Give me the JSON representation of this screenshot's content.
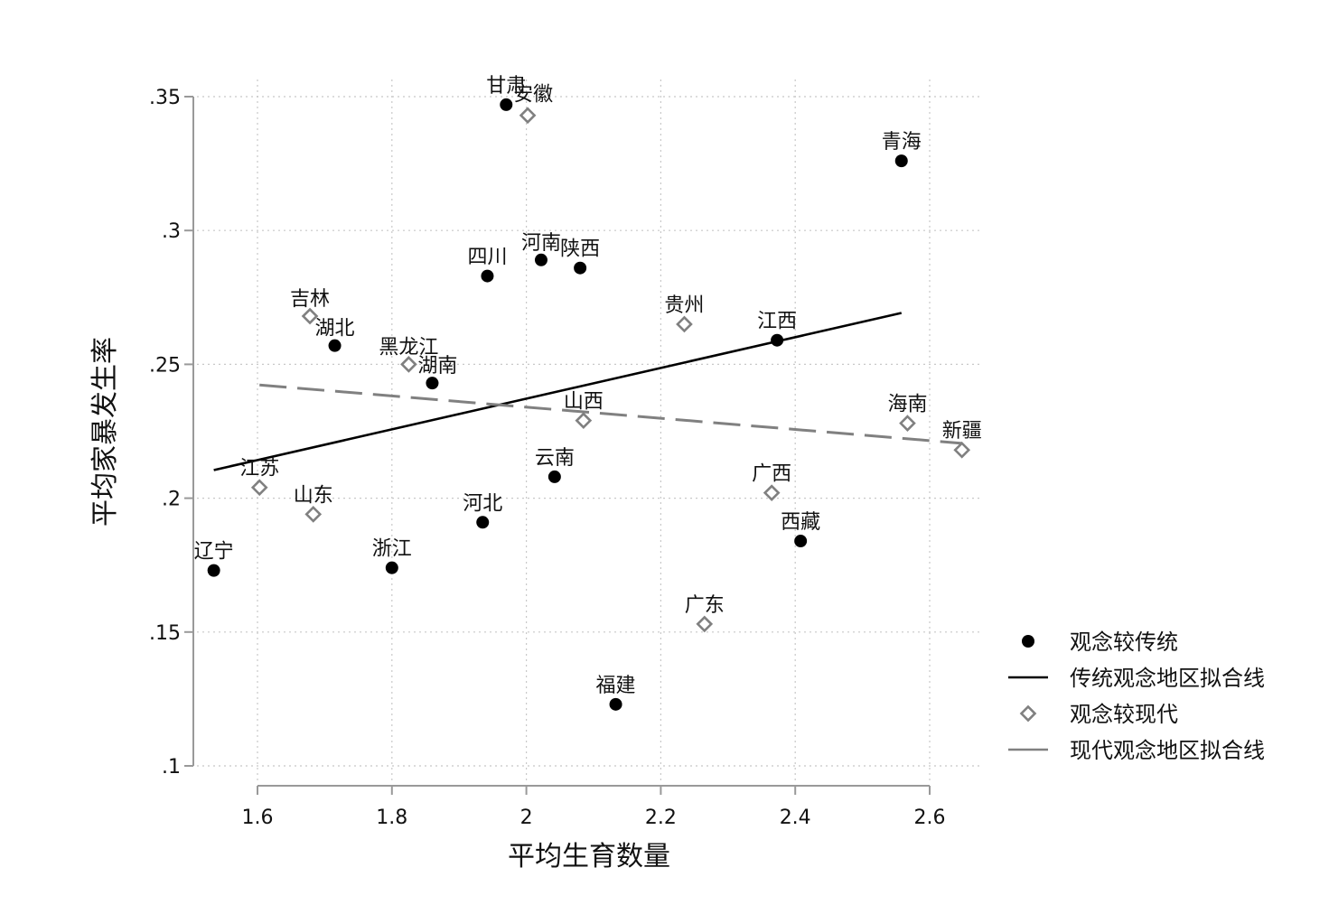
{
  "chart_data": {
    "type": "scatter",
    "title": "",
    "xlabel": "平均生育数量",
    "ylabel": "平均家暴发生率",
    "xlim": [
      1.51,
      2.67
    ],
    "ylim": [
      0.095,
      0.365
    ],
    "xticks": [
      1.6,
      1.8,
      2.0,
      2.2,
      2.4,
      2.6
    ],
    "xtick_labels": [
      "1.6",
      "1.8",
      "2",
      "2.2",
      "2.4",
      "2.6"
    ],
    "yticks": [
      0.1,
      0.15,
      0.2,
      0.25,
      0.3,
      0.35
    ],
    "ytick_labels": [
      ".1",
      ".15",
      ".2",
      ".25",
      ".3",
      ".35"
    ],
    "grid": true,
    "legend_position": "right",
    "series": [
      {
        "name": "观念较传统",
        "marker": "filled-circle",
        "color": "#000000",
        "points": [
          {
            "label": "辽宁",
            "x": 1.535,
            "y": 0.173
          },
          {
            "label": "湖北",
            "x": 1.715,
            "y": 0.257
          },
          {
            "label": "浙江",
            "x": 1.8,
            "y": 0.174
          },
          {
            "label": "湖南",
            "x": 1.86,
            "y": 0.243
          },
          {
            "label": "河北",
            "x": 1.935,
            "y": 0.191
          },
          {
            "label": "四川",
            "x": 1.942,
            "y": 0.283
          },
          {
            "label": "甘肃",
            "x": 1.97,
            "y": 0.347
          },
          {
            "label": "河南",
            "x": 2.022,
            "y": 0.289
          },
          {
            "label": "云南",
            "x": 2.042,
            "y": 0.208
          },
          {
            "label": "陕西",
            "x": 2.08,
            "y": 0.286
          },
          {
            "label": "福建",
            "x": 2.133,
            "y": 0.123
          },
          {
            "label": "江西",
            "x": 2.373,
            "y": 0.259
          },
          {
            "label": "西藏",
            "x": 2.408,
            "y": 0.184
          },
          {
            "label": "青海",
            "x": 2.558,
            "y": 0.326
          }
        ]
      },
      {
        "name": "传统观念地区拟合线",
        "type": "line",
        "color": "#000000",
        "dash": "solid",
        "x": [
          1.535,
          2.558
        ],
        "y": [
          0.2105,
          0.2692
        ]
      },
      {
        "name": "观念较现代",
        "marker": "hollow-diamond",
        "color": "#808080",
        "points": [
          {
            "label": "江苏",
            "x": 1.603,
            "y": 0.204
          },
          {
            "label": "吉林",
            "x": 1.678,
            "y": 0.268
          },
          {
            "label": "山东",
            "x": 1.683,
            "y": 0.194
          },
          {
            "label": "黑龙江",
            "x": 1.825,
            "y": 0.25
          },
          {
            "label": "安徽",
            "x": 2.002,
            "y": 0.343
          },
          {
            "label": "山西",
            "x": 2.085,
            "y": 0.229
          },
          {
            "label": "贵州",
            "x": 2.235,
            "y": 0.265
          },
          {
            "label": "广东",
            "x": 2.265,
            "y": 0.153
          },
          {
            "label": "广西",
            "x": 2.365,
            "y": 0.202
          },
          {
            "label": "海南",
            "x": 2.567,
            "y": 0.228
          },
          {
            "label": "新疆",
            "x": 2.648,
            "y": 0.218
          }
        ]
      },
      {
        "name": "现代观念地区拟合线",
        "type": "line",
        "color": "#808080",
        "dash": "dashed",
        "x": [
          1.603,
          2.648
        ],
        "y": [
          0.2423,
          0.2205
        ]
      }
    ]
  }
}
